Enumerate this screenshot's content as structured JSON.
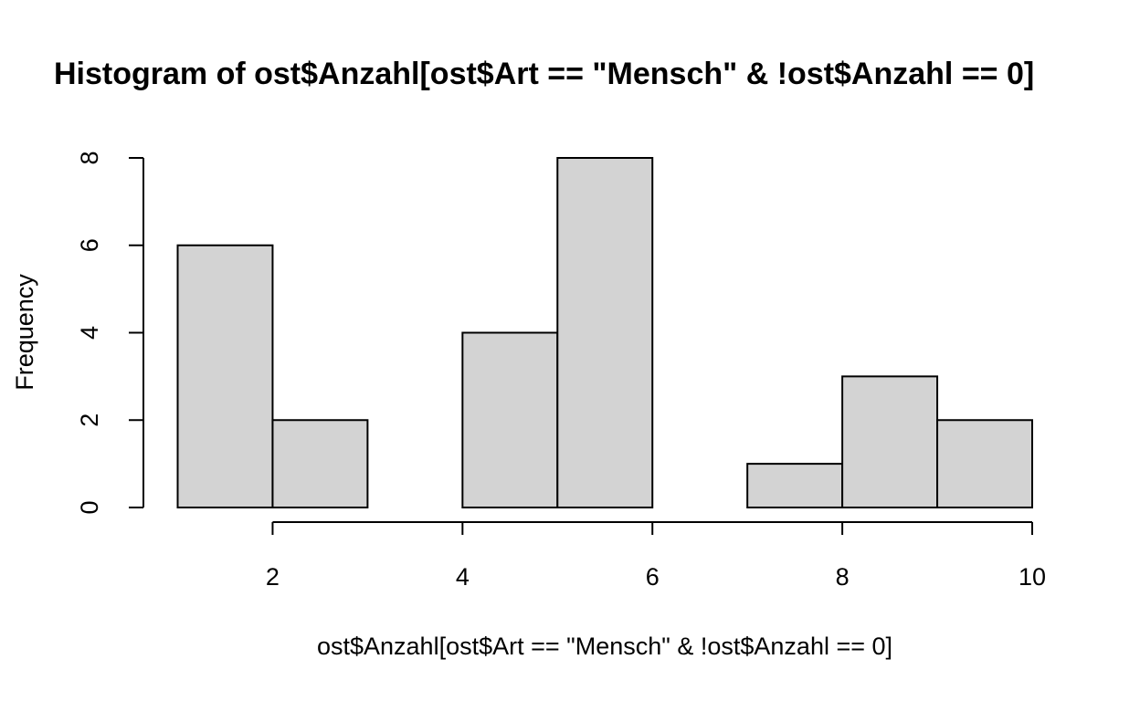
{
  "chart_data": {
    "type": "bar",
    "title": "Histogram of ost$Anzahl[ost$Art == \"Mensch\" & !ost$Anzahl == 0]",
    "xlabel": "ost$Anzahl[ost$Art == \"Mensch\" & !ost$Anzahl == 0]",
    "ylabel": "Frequency",
    "bins": [
      {
        "start": 1,
        "end": 2,
        "count": 6
      },
      {
        "start": 2,
        "end": 3,
        "count": 2
      },
      {
        "start": 3,
        "end": 4,
        "count": 0
      },
      {
        "start": 4,
        "end": 5,
        "count": 4
      },
      {
        "start": 5,
        "end": 6,
        "count": 8
      },
      {
        "start": 6,
        "end": 7,
        "count": 0
      },
      {
        "start": 7,
        "end": 8,
        "count": 1
      },
      {
        "start": 8,
        "end": 9,
        "count": 3
      },
      {
        "start": 9,
        "end": 10,
        "count": 2
      }
    ],
    "xticks": [
      2,
      4,
      6,
      8,
      10
    ],
    "yticks": [
      0,
      2,
      4,
      6,
      8
    ],
    "xlim": [
      1,
      10
    ],
    "ylim": [
      0,
      8
    ],
    "grid": false,
    "bar_color": "#d3d3d3",
    "edge_color": "#000000"
  }
}
